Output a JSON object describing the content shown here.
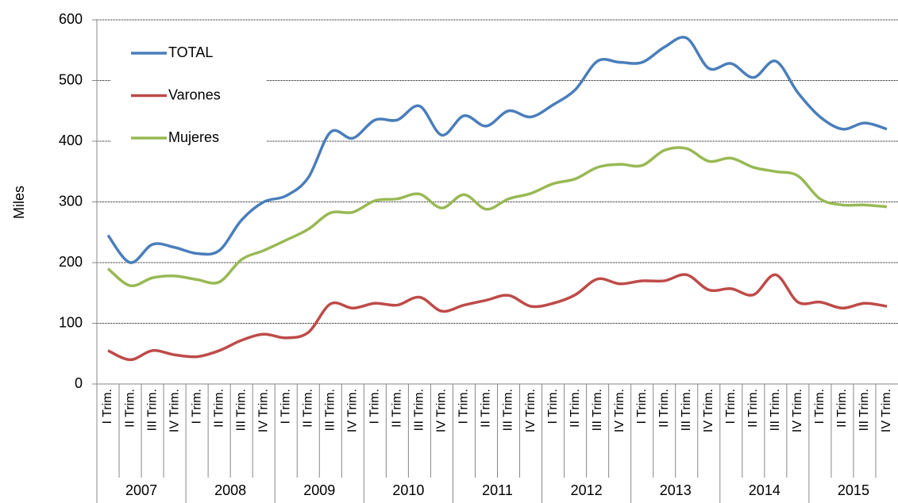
{
  "chart_data": {
    "type": "line",
    "y_label": "Miles",
    "categories": [
      "I Trim.",
      "II Trim.",
      "III Trim.",
      "IV Trim.",
      "I Trim.",
      "II Trim.",
      "III Trim.",
      "IV Trim.",
      "I Trim.",
      "II Trim.",
      "III Trim.",
      "IV Trim.",
      "I Trim.",
      "II Trim.",
      "III Trim.",
      "IV Trim.",
      "I Trim.",
      "II Trim.",
      "III Trim.",
      "IV Trim.",
      "I Trim.",
      "II Trim.",
      "III Trim.",
      "IV Trim.",
      "I Trim.",
      "II Trim.",
      "III Trim.",
      "IV Trim.",
      "I Trim.",
      "II Trim.",
      "III Trim.",
      "IV Trim.",
      "I Trim.",
      "II Trim.",
      "III Trim.",
      "IV Trim."
    ],
    "category_groups": [
      "2007",
      "2008",
      "2009",
      "2010",
      "2011",
      "2012",
      "2013",
      "2014",
      "2015"
    ],
    "series": [
      {
        "name": "TOTAL",
        "color": "#4a7ebb",
        "values": [
          245,
          200,
          230,
          225,
          215,
          220,
          270,
          300,
          310,
          340,
          415,
          405,
          435,
          435,
          458,
          410,
          442,
          425,
          450,
          440,
          460,
          485,
          532,
          530,
          530,
          555,
          570,
          520,
          528,
          505,
          532,
          480,
          440,
          420,
          430,
          420
        ]
      },
      {
        "name": "Varones",
        "color": "#be4b48",
        "values": [
          55,
          40,
          55,
          48,
          45,
          55,
          72,
          82,
          76,
          85,
          132,
          125,
          133,
          130,
          143,
          120,
          130,
          138,
          146,
          128,
          133,
          147,
          173,
          165,
          170,
          170,
          180,
          155,
          157,
          147,
          180,
          135,
          135,
          125,
          133,
          128
        ]
      },
      {
        "name": "Mujeres",
        "color": "#98b954",
        "values": [
          190,
          162,
          175,
          178,
          172,
          168,
          205,
          220,
          237,
          255,
          282,
          283,
          302,
          305,
          313,
          290,
          312,
          288,
          305,
          314,
          330,
          338,
          357,
          362,
          360,
          385,
          388,
          367,
          372,
          357,
          350,
          343,
          305,
          295,
          295,
          292
        ]
      }
    ],
    "ylim": [
      0,
      600
    ],
    "yticks": [
      0,
      100,
      200,
      300,
      400,
      500,
      600
    ],
    "grid": true,
    "legend": "upper left"
  }
}
